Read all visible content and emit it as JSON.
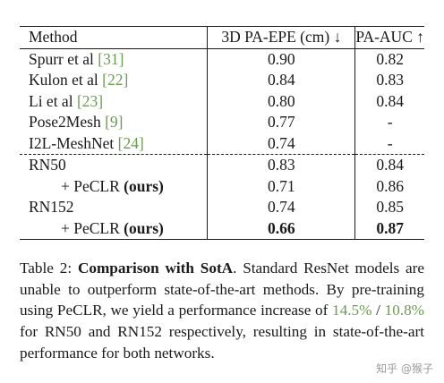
{
  "table": {
    "headers": [
      "Method",
      "3D PA-EPE (cm) ↓",
      "PA-AUC ↑"
    ],
    "rows": [
      {
        "method": "Spurr et al ",
        "cite": "[31]",
        "epe": "0.90",
        "auc": "0.82"
      },
      {
        "method": "Kulon et al ",
        "cite": "[22]",
        "epe": "0.84",
        "auc": "0.83"
      },
      {
        "method": "Li et al ",
        "cite": "[23]",
        "epe": "0.80",
        "auc": "0.84"
      },
      {
        "method": "Pose2Mesh ",
        "cite": "[9]",
        "epe": "0.77",
        "auc": "-"
      },
      {
        "method": "I2L-MeshNet ",
        "cite": "[24]",
        "epe": "0.74",
        "auc": "-"
      },
      {
        "method": "RN50",
        "epe": "0.83",
        "auc": "0.84"
      },
      {
        "method": "+ PeCLR ",
        "bold_suffix": "(ours)",
        "epe": "0.71",
        "auc": "0.86"
      },
      {
        "method": "RN152",
        "epe": "0.74",
        "auc": "0.85"
      },
      {
        "method": "+ PeCLR ",
        "bold_suffix": "(ours)",
        "epe": "0.66",
        "auc": "0.87"
      }
    ]
  },
  "caption": {
    "label": "Table 2: ",
    "bold_title": "Comparison with SotA",
    "text_1": ". Standard ResNet models are unable to outperform state-of-the-art methods. By pre-training using PeCLR, we yield a performance increase of ",
    "pct_1": "14.5%",
    "sep": " / ",
    "pct_2": "10.8%",
    "text_2": " for RN50 and RN152 respectively, resulting in state-of-the-art performance for both networks."
  },
  "watermark": "知乎 @猴子"
}
